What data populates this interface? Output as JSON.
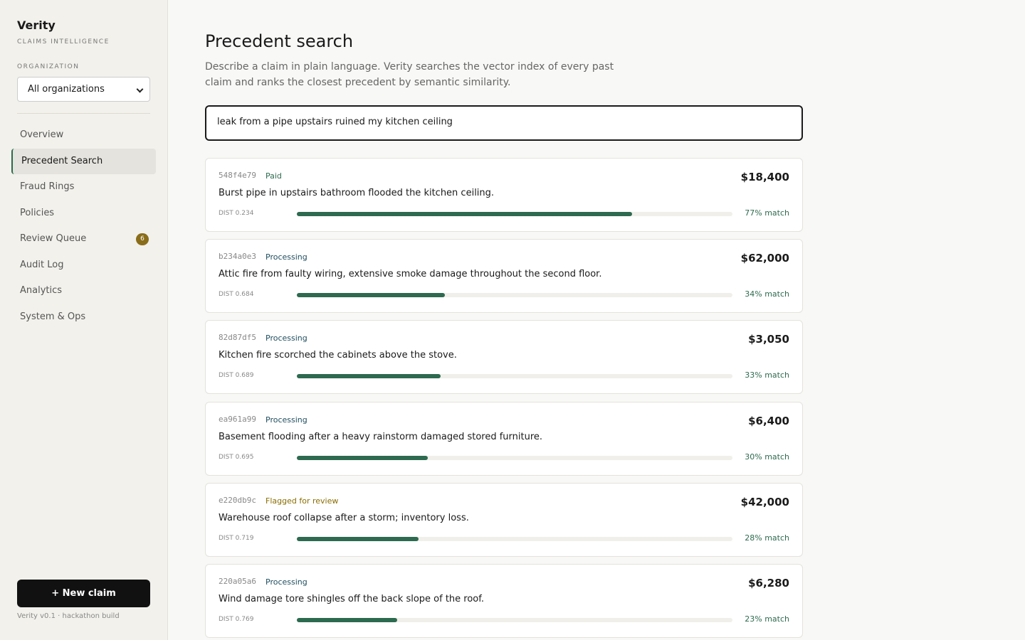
{
  "sidebar": {
    "brand": "Verity",
    "tagline": "CLAIMS INTELLIGENCE",
    "org_label": "ORGANIZATION",
    "org_select": "All organizations",
    "nav": [
      {
        "label": "Overview"
      },
      {
        "label": "Precedent Search",
        "active": true
      },
      {
        "label": "Fraud Rings"
      },
      {
        "label": "Policies"
      },
      {
        "label": "Review Queue",
        "badge": "6"
      },
      {
        "label": "Audit Log"
      },
      {
        "label": "Analytics"
      },
      {
        "label": "System & Ops"
      }
    ],
    "new_claim": "+ New claim",
    "footer": "Verity v0.1 · hackathon build"
  },
  "main": {
    "title": "Precedent search",
    "description": "Describe a claim in plain language. Verity searches the vector index of every past claim and ranks the closest precedent by semantic similarity.",
    "query": "leak from a pipe upstairs ruined my kitchen ceiling",
    "results": [
      {
        "id": "548f4e79",
        "status": "Paid",
        "status_kind": "paid",
        "description": "Burst pipe in upstairs bathroom flooded the kitchen ceiling.",
        "amount": "$18,400",
        "dist": "DIST 0.234",
        "match": 77,
        "match_label": "77% match"
      },
      {
        "id": "b234a0e3",
        "status": "Processing",
        "status_kind": "processing",
        "description": "Attic fire from faulty wiring, extensive smoke damage throughout the second floor.",
        "amount": "$62,000",
        "dist": "DIST 0.684",
        "match": 34,
        "match_label": "34% match"
      },
      {
        "id": "82d87df5",
        "status": "Processing",
        "status_kind": "processing",
        "description": "Kitchen fire scorched the cabinets above the stove.",
        "amount": "$3,050",
        "dist": "DIST 0.689",
        "match": 33,
        "match_label": "33% match"
      },
      {
        "id": "ea961a99",
        "status": "Processing",
        "status_kind": "processing",
        "description": "Basement flooding after a heavy rainstorm damaged stored furniture.",
        "amount": "$6,400",
        "dist": "DIST 0.695",
        "match": 30,
        "match_label": "30% match"
      },
      {
        "id": "e220db9c",
        "status": "Flagged for review",
        "status_kind": "flagged",
        "description": "Warehouse roof collapse after a storm; inventory loss.",
        "amount": "$42,000",
        "dist": "DIST 0.719",
        "match": 28,
        "match_label": "28% match"
      },
      {
        "id": "220a05a6",
        "status": "Processing",
        "status_kind": "processing",
        "description": "Wind damage tore shingles off the back slope of the roof.",
        "amount": "$6,280",
        "dist": "DIST 0.769",
        "match": 23,
        "match_label": "23% match"
      }
    ]
  }
}
